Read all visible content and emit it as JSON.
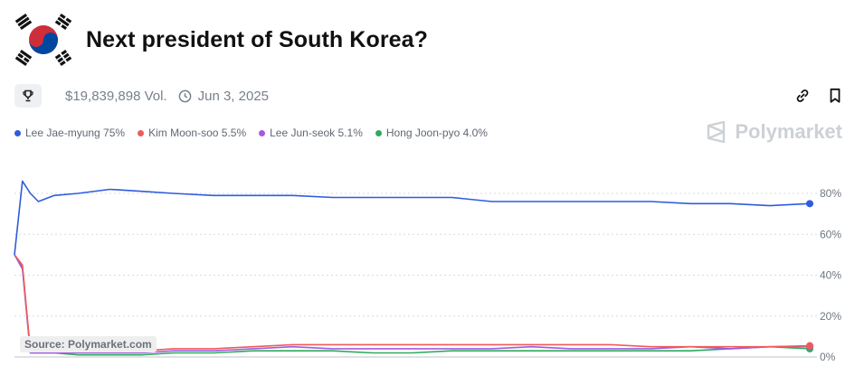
{
  "market": {
    "title": "Next president of South Korea?",
    "volume": "$19,839,898 Vol.",
    "date": "Jun 3, 2025"
  },
  "icons": {
    "flag": "south-korea-flag-icon",
    "trophy": "trophy-icon",
    "clock": "clock-icon",
    "link": "link-icon",
    "bookmark": "bookmark-icon"
  },
  "brand": {
    "name": "Polymarket"
  },
  "source": "Source: Polymarket.com",
  "legend": [
    {
      "label": "Lee Jae-myung 75%",
      "color": "#2e5cdc"
    },
    {
      "label": "Kim Moon-soo 5.5%",
      "color": "#ef5b5b"
    },
    {
      "label": "Lee Jun-seok 5.1%",
      "color": "#a45ae0"
    },
    {
      "label": "Hong Joon-pyo 4.0%",
      "color": "#2faa5e"
    }
  ],
  "chart_data": {
    "type": "line",
    "x": [
      0,
      1,
      2,
      3,
      5,
      8,
      12,
      16,
      20,
      25,
      30,
      35,
      40,
      45,
      50,
      55,
      60,
      65,
      70,
      75,
      80,
      85,
      90,
      95,
      100
    ],
    "ylim": [
      0,
      88
    ],
    "yticks": [
      0,
      20,
      40,
      60,
      80
    ],
    "ytick_labels": [
      "0%",
      "20%",
      "40%",
      "60%",
      "80%"
    ],
    "grid": true,
    "series": [
      {
        "name": "Lee Jae-myung",
        "color": "#2e5cdc",
        "values": [
          50,
          86,
          80,
          76,
          79,
          80,
          82,
          81,
          80,
          79,
          79,
          79,
          78,
          78,
          78,
          78,
          76,
          76,
          76,
          76,
          76,
          75,
          75,
          74,
          75
        ]
      },
      {
        "name": "Kim Moon-soo",
        "color": "#ef5b5b",
        "values": [
          50,
          45,
          3,
          3,
          3,
          3,
          3,
          3,
          4,
          4,
          5,
          6,
          6,
          6,
          6,
          6,
          6,
          6,
          6,
          6,
          5,
          5,
          5,
          5,
          5.5
        ]
      },
      {
        "name": "Lee Jun-seok",
        "color": "#a45ae0",
        "values": [
          50,
          43,
          2,
          2,
          2,
          2,
          2,
          2,
          3,
          3,
          4,
          5,
          4,
          4,
          4,
          4,
          4,
          5,
          4,
          4,
          4,
          5,
          4,
          5,
          5.1
        ]
      },
      {
        "name": "Hong Joon-pyo",
        "color": "#2faa5e",
        "values": [
          50,
          44,
          2,
          2,
          2,
          1,
          1,
          1,
          2,
          2,
          3,
          3,
          3,
          2,
          2,
          3,
          3,
          3,
          3,
          3,
          3,
          3,
          4,
          5,
          4
        ]
      }
    ]
  }
}
